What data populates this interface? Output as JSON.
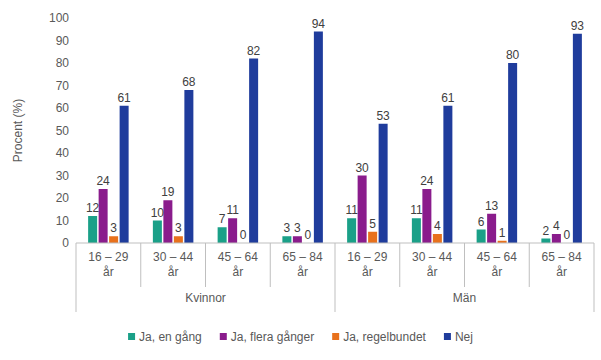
{
  "chart_data": {
    "type": "bar",
    "y_label": "Procent (%)",
    "categories": [
      "16 – 29 år",
      "30 – 44 år",
      "45 – 64 år",
      "65 – 84 år",
      "16 – 29 år",
      "30 – 44 år",
      "45 – 64 år",
      "65 – 84 år"
    ],
    "category_groups": [
      "Kvinnor",
      "Kvinnor",
      "Kvinnor",
      "Kvinnor",
      "Män",
      "Män",
      "Män",
      "Män"
    ],
    "series": [
      {
        "name": "Ja, en gång",
        "color": "#1aa088",
        "values": [
          12,
          10,
          7,
          3,
          11,
          11,
          6,
          2
        ]
      },
      {
        "name": "Ja, flera gånger",
        "color": "#8a1c8c",
        "values": [
          24,
          19,
          11,
          3,
          30,
          24,
          13,
          4
        ]
      },
      {
        "name": "Ja, regelbundet",
        "color": "#e8711c",
        "values": [
          3,
          3,
          0,
          0,
          5,
          4,
          1,
          0
        ]
      },
      {
        "name": "Nej",
        "color": "#1f3c9c",
        "values": [
          61,
          68,
          82,
          94,
          53,
          61,
          80,
          93
        ]
      }
    ],
    "ylim": [
      0,
      100
    ],
    "yticks": [
      0,
      10,
      20,
      30,
      40,
      50,
      60,
      70,
      80,
      90,
      100
    ],
    "grid": false,
    "data_labels": true,
    "legend": "bottom"
  }
}
